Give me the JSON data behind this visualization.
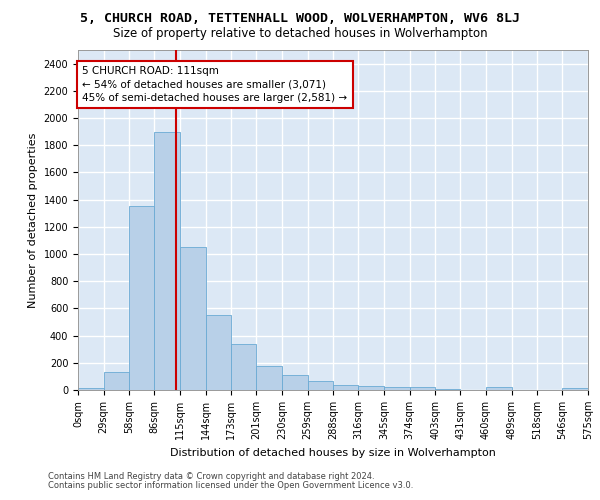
{
  "title": "5, CHURCH ROAD, TETTENHALL WOOD, WOLVERHAMPTON, WV6 8LJ",
  "subtitle": "Size of property relative to detached houses in Wolverhampton",
  "xlabel": "Distribution of detached houses by size in Wolverhampton",
  "ylabel": "Number of detached properties",
  "bar_color": "#b8d0e8",
  "bar_edge_color": "#6aaad4",
  "vline_color": "#cc0000",
  "vline_x": 111,
  "annotation_line1": "5 CHURCH ROAD: 111sqm",
  "annotation_line2": "← 54% of detached houses are smaller (3,071)",
  "annotation_line3": "45% of semi-detached houses are larger (2,581) →",
  "footer1": "Contains HM Land Registry data © Crown copyright and database right 2024.",
  "footer2": "Contains public sector information licensed under the Open Government Licence v3.0.",
  "bin_edges": [
    0,
    29,
    58,
    86,
    115,
    144,
    173,
    201,
    230,
    259,
    288,
    316,
    345,
    374,
    403,
    431,
    460,
    489,
    518,
    546,
    575
  ],
  "bar_heights": [
    15,
    130,
    1350,
    1900,
    1050,
    550,
    340,
    175,
    110,
    65,
    40,
    30,
    25,
    20,
    5,
    0,
    25,
    0,
    0,
    15
  ],
  "xlim": [
    0,
    575
  ],
  "ylim": [
    0,
    2500
  ],
  "yticks": [
    0,
    200,
    400,
    600,
    800,
    1000,
    1200,
    1400,
    1600,
    1800,
    2000,
    2200,
    2400
  ],
  "xtick_labels": [
    "0sqm",
    "29sqm",
    "58sqm",
    "86sqm",
    "115sqm",
    "144sqm",
    "173sqm",
    "201sqm",
    "230sqm",
    "259sqm",
    "288sqm",
    "316sqm",
    "345sqm",
    "374sqm",
    "403sqm",
    "431sqm",
    "460sqm",
    "489sqm",
    "518sqm",
    "546sqm",
    "575sqm"
  ],
  "background_color": "#dce8f5",
  "grid_color": "#ffffff",
  "title_fontsize": 9.5,
  "subtitle_fontsize": 8.5,
  "xlabel_fontsize": 8,
  "ylabel_fontsize": 8,
  "tick_fontsize": 7,
  "footer_fontsize": 6,
  "annotation_fontsize": 7.5
}
